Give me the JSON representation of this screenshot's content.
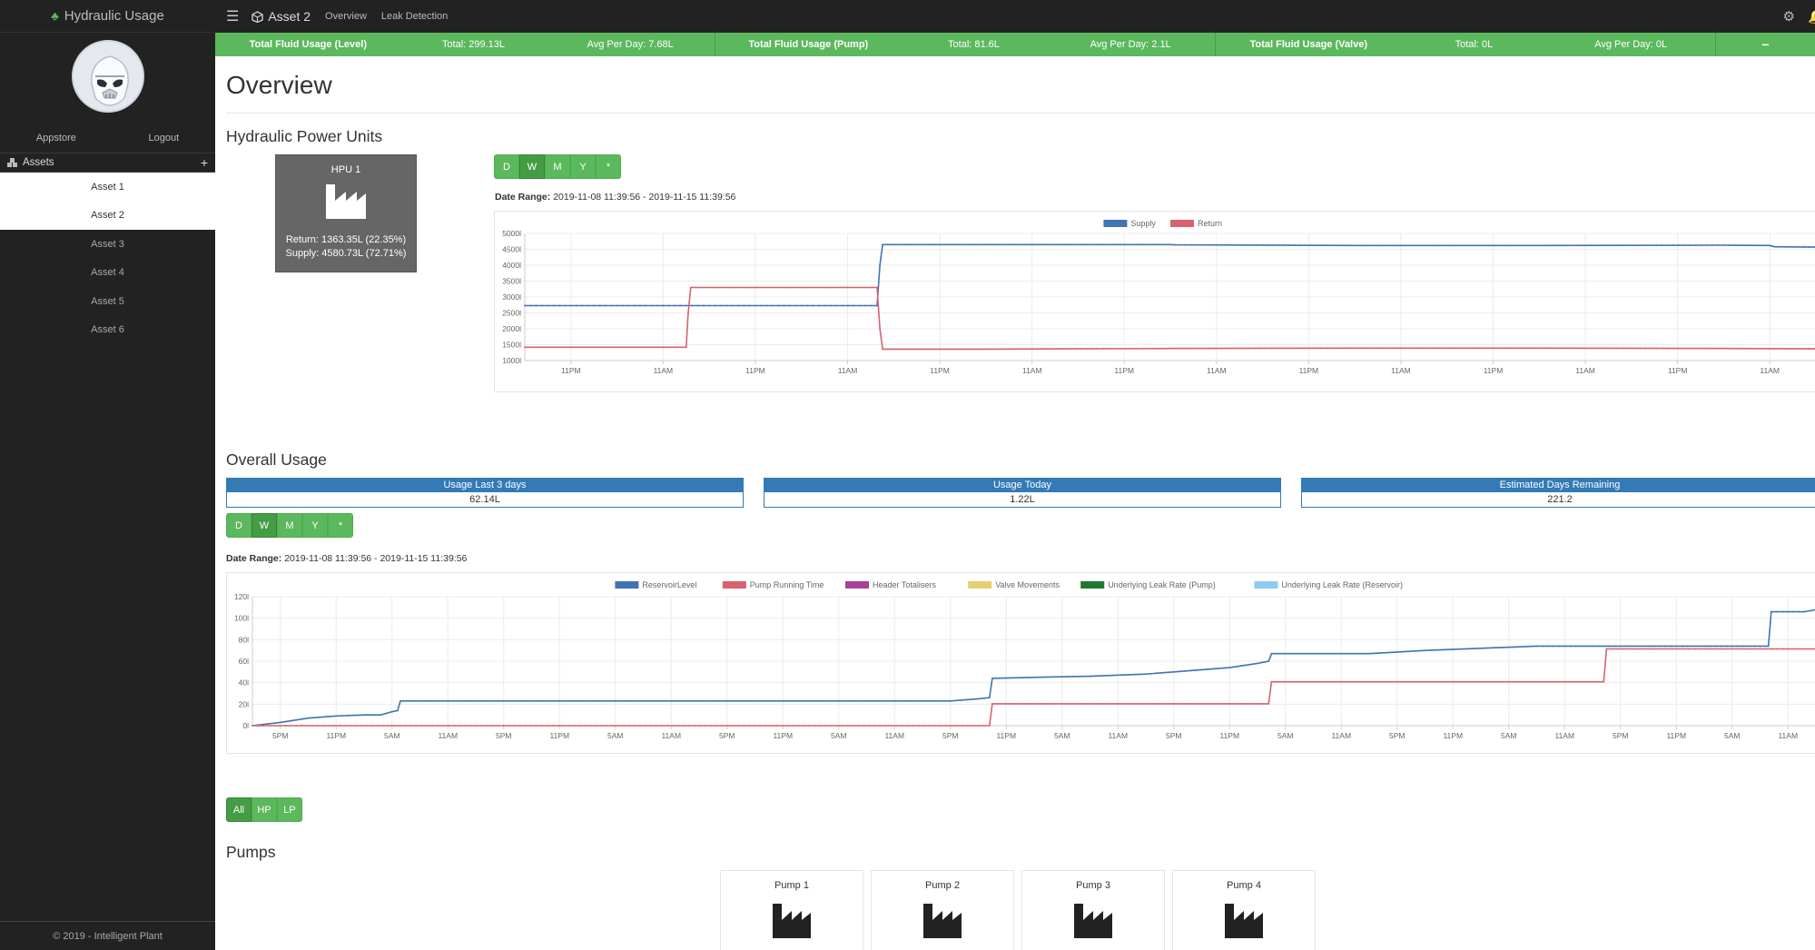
{
  "app": {
    "brand": "Hydraulic Usage",
    "appstore": "Appstore",
    "logout": "Logout",
    "assets_label": "Assets",
    "assets": [
      "Asset 1",
      "Asset 2",
      "Asset 3",
      "Asset 4",
      "Asset 5",
      "Asset 6"
    ],
    "footer": "© 2019 - Intelligent Plant"
  },
  "topbar": {
    "asset_title": "Asset 2",
    "nav": [
      "Overview",
      "Leak Detection"
    ]
  },
  "stats": {
    "level": {
      "title": "Total Fluid Usage (Level)",
      "total": "Total: 299.13L",
      "avg": "Avg Per Day: 7.68L"
    },
    "pump": {
      "title": "Total Fluid Usage (Pump)",
      "total": "Total: 81.6L",
      "avg": "Avg Per Day: 2.1L"
    },
    "valve": {
      "title": "Total Fluid Usage (Valve)",
      "total": "Total: 0L",
      "avg": "Avg Per Day: 0L"
    },
    "collapse": "−"
  },
  "main": {
    "title": "Overview",
    "hpu_section": "Hydraulic Power Units",
    "hpu": {
      "name": "HPU 1",
      "return": "Return: 1363.35L (22.35%)",
      "supply": "Supply: 4580.73L (72.71%)"
    },
    "period_buttons": [
      "D",
      "W",
      "M",
      "Y",
      "*"
    ],
    "date_range_label": "Date Range:",
    "date_range": "2019-11-08 11:39:56 - 2019-11-15 11:39:56",
    "overall_section": "Overall Usage",
    "usage_panels": [
      {
        "title": "Usage Last 3 days",
        "value": "62.14L"
      },
      {
        "title": "Usage Today",
        "value": "1.22L"
      },
      {
        "title": "Estimated Days Remaining",
        "value": "221.2"
      }
    ],
    "filter_buttons": [
      "All",
      "HP",
      "LP"
    ],
    "pumps_section": "Pumps",
    "pumps": [
      "Pump 1",
      "Pump 2",
      "Pump 3",
      "Pump 4"
    ]
  },
  "colors": {
    "green": "#5cb85c",
    "blue": "#337ab7",
    "supply": "#4273b2",
    "return": "#d9606e",
    "dark": "#222222"
  },
  "chart_data": [
    {
      "type": "line",
      "title": "",
      "ylim": [
        1000,
        5000
      ],
      "yticks": [
        "5000l",
        "4500l",
        "4000l",
        "3500l",
        "3000l",
        "2500l",
        "2000l",
        "1500l",
        "1000l"
      ],
      "xticks": [
        "11PM",
        "11AM",
        "11PM",
        "11AM",
        "11PM",
        "11AM",
        "11PM",
        "11AM",
        "11PM",
        "11AM",
        "11PM",
        "11AM",
        "11PM",
        "11AM"
      ],
      "grid": true,
      "legend": "top-center",
      "series": [
        {
          "name": "Supply",
          "color": "#4273b2",
          "points": [
            [
              0,
              2730
            ],
            [
              1.0,
              2730
            ],
            [
              2.0,
              2730
            ],
            [
              3.0,
              2730
            ],
            [
              3.82,
              2730
            ],
            [
              3.85,
              4000
            ],
            [
              3.88,
              4650
            ],
            [
              5.0,
              4650
            ],
            [
              7.0,
              4650
            ],
            [
              7.05,
              4640
            ],
            [
              9.0,
              4620
            ],
            [
              11.0,
              4620
            ],
            [
              13.0,
              4630
            ],
            [
              13.5,
              4620
            ],
            [
              13.55,
              4580
            ],
            [
              14.05,
              4570
            ]
          ]
        },
        {
          "name": "Return",
          "color": "#d9606e",
          "points": [
            [
              0,
              1420
            ],
            [
              1.75,
              1420
            ],
            [
              1.77,
              2450
            ],
            [
              1.8,
              3300
            ],
            [
              3.0,
              3300
            ],
            [
              3.82,
              3300
            ],
            [
              3.85,
              2000
            ],
            [
              3.88,
              1360
            ],
            [
              5.0,
              1360
            ],
            [
              7.0,
              1380
            ],
            [
              9.0,
              1390
            ],
            [
              11.0,
              1390
            ],
            [
              13.0,
              1380
            ],
            [
              14.05,
              1370
            ]
          ]
        }
      ]
    },
    {
      "type": "line",
      "title": "",
      "ylim": [
        0,
        120
      ],
      "yticks": [
        "120l",
        "100l",
        "80l",
        "60l",
        "40l",
        "20l",
        "0l"
      ],
      "xticks": [
        "5PM",
        "11PM",
        "5AM",
        "11AM",
        "5PM",
        "11PM",
        "5AM",
        "11AM",
        "5PM",
        "11PM",
        "5AM",
        "11AM",
        "5PM",
        "11PM",
        "5AM",
        "11AM",
        "5PM",
        "11PM",
        "5AM",
        "11AM",
        "5PM",
        "11PM",
        "5AM",
        "11AM",
        "5PM",
        "11PM",
        "5AM",
        "11AM"
      ],
      "grid": true,
      "legend": "top-center",
      "series": [
        {
          "name": "ReservoirLevel",
          "color": "#4273b2",
          "points": [
            [
              0,
              0
            ],
            [
              0.5,
              3
            ],
            [
              1.0,
              7
            ],
            [
              1.5,
              9
            ],
            [
              2.0,
              10
            ],
            [
              2.3,
              10
            ],
            [
              2.5,
              13
            ],
            [
              2.6,
              14
            ],
            [
              2.65,
              23
            ],
            [
              3.0,
              23
            ],
            [
              6.0,
              23
            ],
            [
              10.0,
              23
            ],
            [
              12.5,
              23
            ],
            [
              13.0,
              25
            ],
            [
              13.2,
              26
            ],
            [
              13.25,
              44
            ],
            [
              14.0,
              45
            ],
            [
              15.0,
              46
            ],
            [
              16.0,
              48
            ],
            [
              16.5,
              50
            ],
            [
              17.5,
              54
            ],
            [
              18.0,
              58
            ],
            [
              18.2,
              60
            ],
            [
              18.25,
              67
            ],
            [
              19.0,
              67
            ],
            [
              20.0,
              67
            ],
            [
              21.0,
              70
            ],
            [
              22.0,
              72
            ],
            [
              23.0,
              74
            ],
            [
              25.0,
              74
            ],
            [
              27.0,
              74
            ],
            [
              27.15,
              74
            ],
            [
              27.2,
              106
            ],
            [
              27.8,
              106
            ],
            [
              28.0,
              108
            ]
          ]
        },
        {
          "name": "Pump Running Time",
          "color": "#d9606e",
          "points": [
            [
              0,
              0
            ],
            [
              13.2,
              0
            ],
            [
              13.25,
              20.4
            ],
            [
              18.2,
              20.4
            ],
            [
              18.25,
              40.8
            ],
            [
              24.2,
              40.8
            ],
            [
              24.25,
              71.4
            ],
            [
              28.0,
              71.4
            ]
          ]
        },
        {
          "name": "Header Totalisers",
          "color": "#a6419a",
          "points": []
        },
        {
          "name": "Valve Movements",
          "color": "#e6cf72",
          "points": []
        },
        {
          "name": "Underlying Leak Rate (Pump)",
          "color": "#1f7a2f",
          "points": []
        },
        {
          "name": "Underlying Leak Rate (Reservoir)",
          "color": "#8ccbf0",
          "points": []
        }
      ]
    }
  ]
}
